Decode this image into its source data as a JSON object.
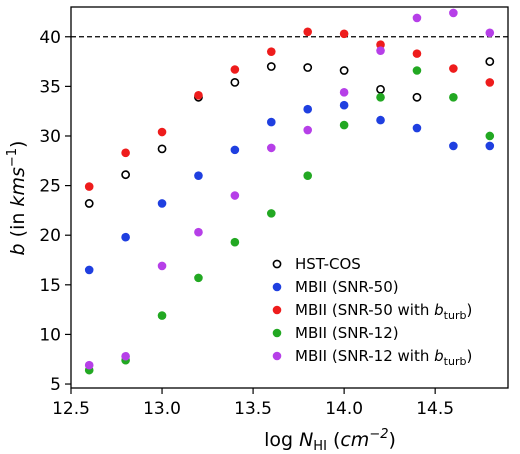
{
  "chart_data": {
    "type": "scatter",
    "xlabel": "log N_HI (cm^-2)",
    "ylabel": "b (in kms^-1)",
    "xlim": [
      12.5,
      14.9
    ],
    "ylim": [
      4.6,
      43.0
    ],
    "xticks": [
      "12.5",
      "13.0",
      "13.5",
      "14.0",
      "14.5"
    ],
    "yticks": [
      "5",
      "10",
      "15",
      "20",
      "25",
      "30",
      "35",
      "40"
    ],
    "reference_line": {
      "y": 40,
      "style": "dashed"
    },
    "legend_position": "lower-right",
    "series": [
      {
        "name": "HST-COS",
        "marker": "open-circle",
        "color": "#000000",
        "x": [
          12.6,
          12.8,
          13.0,
          13.2,
          13.4,
          13.6,
          13.8,
          14.0,
          14.2,
          14.4,
          14.8
        ],
        "y": [
          23.2,
          26.1,
          28.7,
          33.9,
          35.4,
          37.0,
          36.9,
          36.6,
          34.7,
          33.9,
          37.5
        ]
      },
      {
        "name": "MBII (SNR-50)",
        "marker": "circle",
        "color": "#1f3fe0",
        "x": [
          12.6,
          12.8,
          13.0,
          13.2,
          13.4,
          13.6,
          13.8,
          14.0,
          14.2,
          14.4,
          14.6,
          14.8
        ],
        "y": [
          16.5,
          19.8,
          23.2,
          26.0,
          28.6,
          31.4,
          32.7,
          33.1,
          31.6,
          30.8,
          29.0,
          29.0
        ]
      },
      {
        "name": "MBII (SNR-50 with b_turb)",
        "name_main": "MBII (SNR-50 with ",
        "name_sym": "b",
        "name_sub": "turb",
        "name_close": ")",
        "marker": "circle",
        "color": "#ee1c1c",
        "x": [
          12.6,
          12.8,
          13.0,
          13.2,
          13.4,
          13.6,
          13.8,
          14.0,
          14.2,
          14.4,
          14.6,
          14.8
        ],
        "y": [
          24.9,
          28.3,
          30.4,
          34.1,
          36.7,
          38.5,
          40.5,
          40.3,
          39.2,
          38.3,
          36.8,
          35.4
        ]
      },
      {
        "name": "MBII (SNR-12)",
        "marker": "circle",
        "color": "#22a822",
        "x": [
          12.6,
          12.8,
          13.0,
          13.2,
          13.4,
          13.6,
          13.8,
          14.0,
          14.2,
          14.4,
          14.6,
          14.8
        ],
        "y": [
          6.4,
          7.4,
          11.9,
          15.7,
          19.3,
          22.2,
          26.0,
          31.1,
          33.9,
          36.6,
          33.9,
          30.0
        ]
      },
      {
        "name": "MBII (SNR-12 with b_turb)",
        "name_main": "MBII (SNR-12 with ",
        "name_sym": "b",
        "name_sub": "turb",
        "name_close": ")",
        "marker": "circle",
        "color": "#b63fe8",
        "x": [
          12.6,
          12.8,
          13.0,
          13.2,
          13.4,
          13.6,
          13.8,
          14.0,
          14.2,
          14.4,
          14.6,
          14.8
        ],
        "y": [
          6.9,
          7.8,
          16.9,
          20.3,
          24.0,
          28.8,
          30.6,
          34.4,
          38.6,
          41.9,
          42.4,
          40.4
        ]
      }
    ]
  },
  "axis_text": {
    "ylabel_b": "b",
    "ylabel_mid": " (in ",
    "ylabel_unit": "kms",
    "ylabel_exp": "−1",
    "ylabel_close": ")",
    "xlabel_log": "log ",
    "xlabel_N": "N",
    "xlabel_sub": "HI",
    "xlabel_open": " (",
    "xlabel_unit": "cm",
    "xlabel_exp": "−2",
    "xlabel_close": ")"
  }
}
